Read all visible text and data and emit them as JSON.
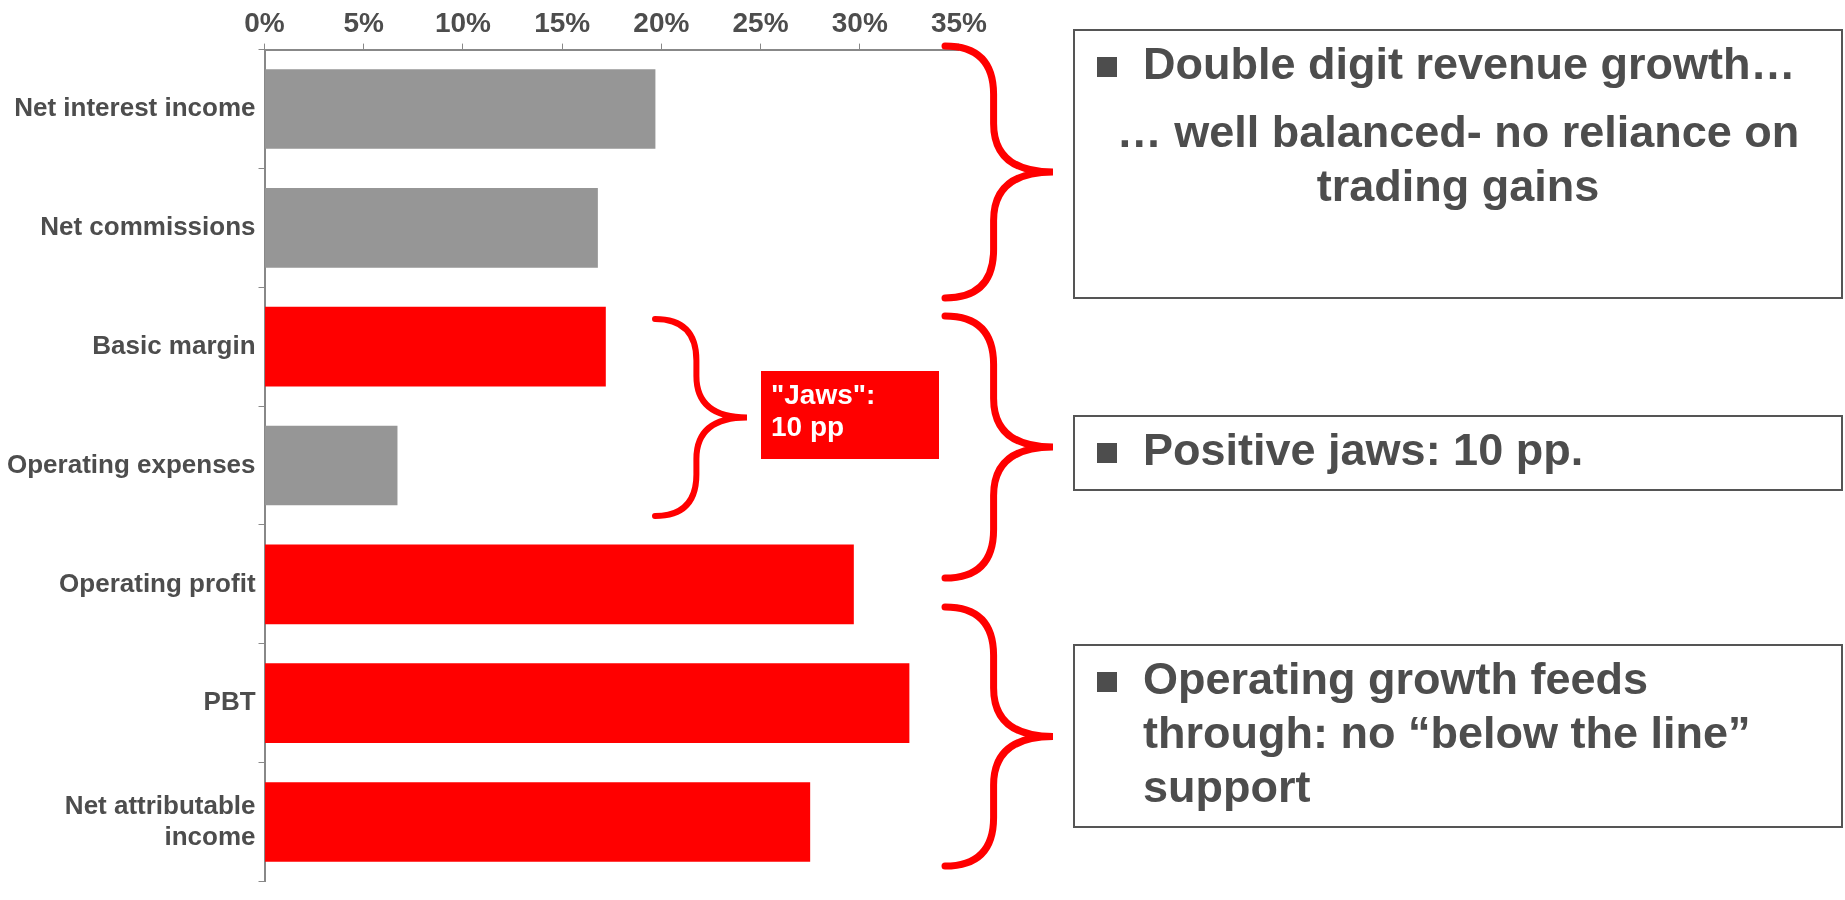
{
  "chart_data": {
    "type": "bar",
    "orientation": "horizontal",
    "categories": [
      "Net interest income",
      "Net commissions",
      "Basic margin",
      "Operating expenses",
      "Operating profit",
      "PBT",
      "Net attributable income"
    ],
    "values": [
      19.7,
      16.8,
      17.2,
      6.7,
      29.7,
      32.5,
      27.5
    ],
    "colors": [
      "#969696",
      "#969696",
      "#ff0000",
      "#969696",
      "#ff0000",
      "#ff0000",
      "#ff0000"
    ],
    "xlim": [
      0,
      35
    ],
    "xticks": [
      {
        "value": 0,
        "label": "0%"
      },
      {
        "value": 5,
        "label": "5%"
      },
      {
        "value": 10,
        "label": "10%"
      },
      {
        "value": 15,
        "label": "15%"
      },
      {
        "value": 20,
        "label": "20%"
      },
      {
        "value": 25,
        "label": "25%"
      },
      {
        "value": 30,
        "label": "30%"
      },
      {
        "value": 35,
        "label": "35%"
      }
    ],
    "grid": false,
    "legend": false,
    "annotations": [
      "\"Jaws\":\n10 pp",
      "Double digit revenue growth…",
      "… well balanced- no reliance on trading gains",
      "Positive jaws: 10 pp.",
      "Operating growth feeds through: no “below the line” support"
    ]
  }
}
